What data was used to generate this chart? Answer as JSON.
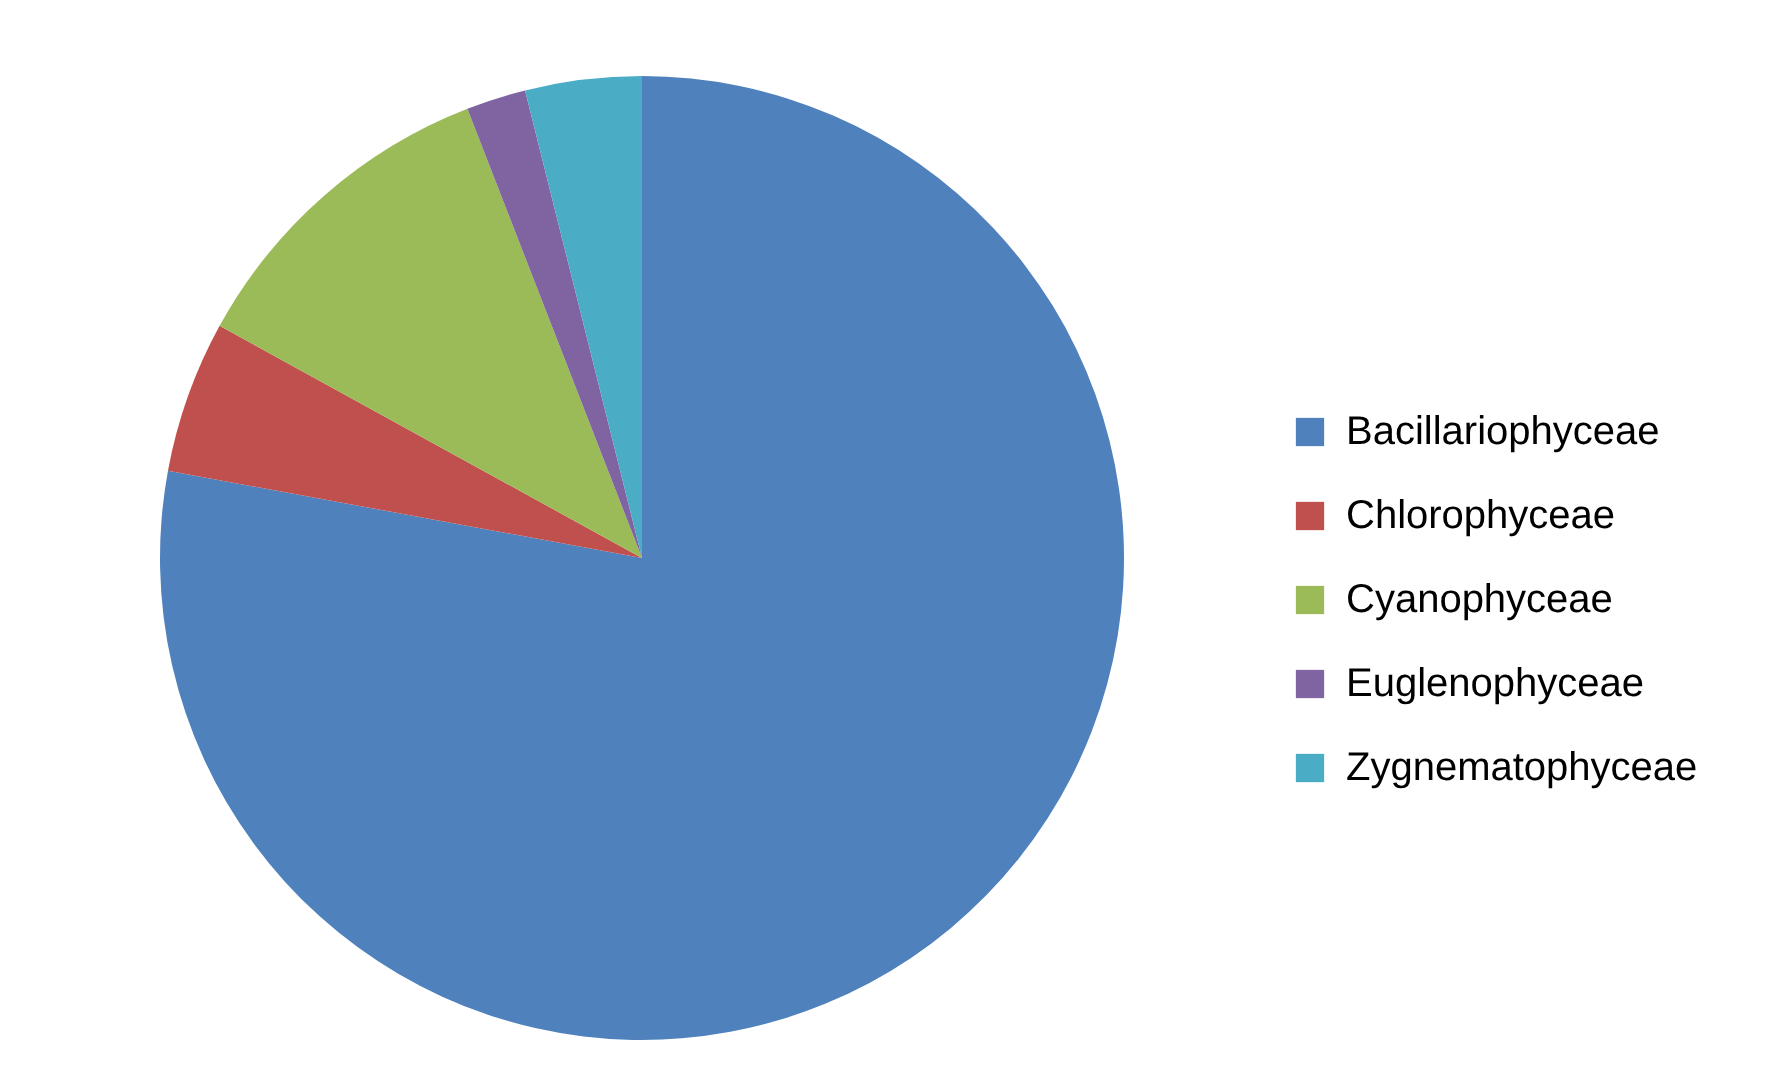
{
  "chart_data": {
    "type": "pie",
    "categories": [
      "Bacillariophyceae",
      "Chlorophyceae",
      "Cyanophyceae",
      "Euglenophyceae",
      "Zygnematophyceae"
    ],
    "values": [
      77.9,
      5.1,
      11.1,
      2.0,
      3.9
    ],
    "colors": [
      "#4f81bd",
      "#c0504d",
      "#9bbb59",
      "#8064a2",
      "#4bacc6"
    ],
    "legend": "right"
  }
}
